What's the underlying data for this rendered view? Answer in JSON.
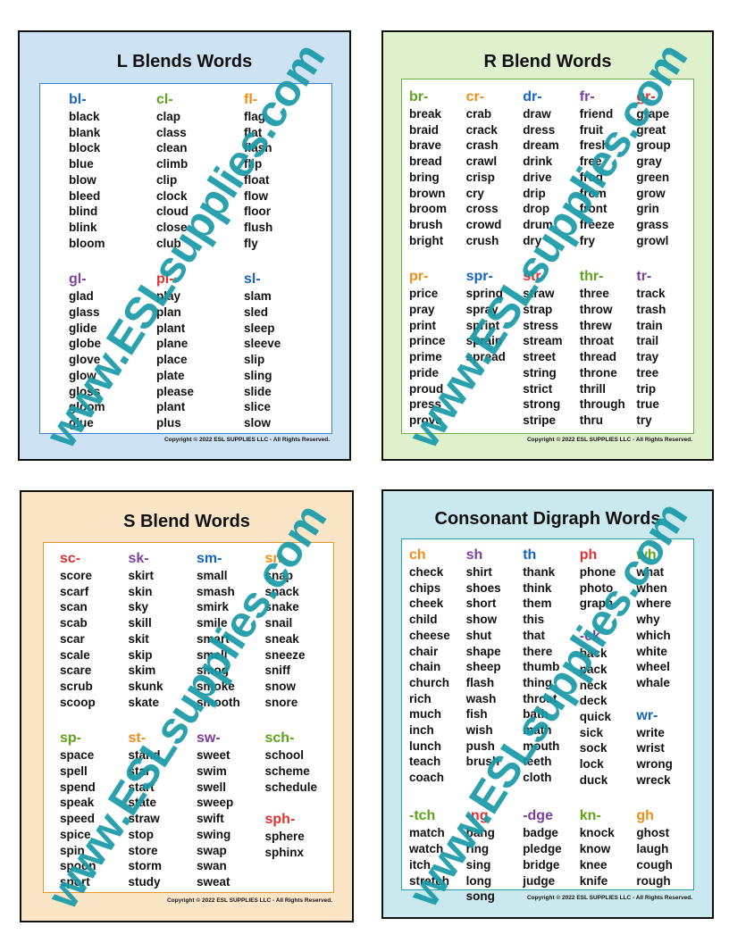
{
  "watermark": "www.ESLsupplies.com",
  "copyright": "Copyright © 2022 ESL SUPPLIES LLC - All Rights Reserved.",
  "colors": {
    "blue": "#1565c0",
    "green": "#5aa51a",
    "orange": "#f28c12",
    "purple": "#7b3fa0",
    "red": "#e03030",
    "teal": "#1a9aa8"
  },
  "cards": [
    {
      "title": "L Blends Words",
      "bg": "#cde2f3",
      "border": "#3a7fd0",
      "rows": [
        [
          [
            {
              "h": "bl-",
              "c": "blue",
              "w": [
                "black",
                "blank",
                "block",
                "blue",
                "blow",
                "bleed",
                "blind",
                "blink",
                "bloom"
              ]
            }
          ],
          [
            {
              "h": "cl-",
              "c": "green",
              "w": [
                "clap",
                "class",
                "clean",
                "climb",
                "clip",
                "clock",
                "cloud",
                "close",
                "club"
              ]
            }
          ],
          [
            {
              "h": "fl-",
              "c": "orange",
              "w": [
                "flag",
                "flat",
                "flash",
                "flip",
                "float",
                "flow",
                "floor",
                "flush",
                "fly"
              ]
            }
          ]
        ],
        [
          [
            {
              "h": "gl-",
              "c": "purple",
              "w": [
                "glad",
                "glass",
                "glide",
                "globe",
                "glove",
                "glow",
                "gloss",
                "gloom",
                "glue"
              ]
            }
          ],
          [
            {
              "h": "pl-",
              "c": "red",
              "w": [
                "play",
                "plan",
                "plant",
                "plane",
                "place",
                "plate",
                "please",
                "plant",
                "plus"
              ]
            }
          ],
          [
            {
              "h": "sl-",
              "c": "blue",
              "w": [
                "slam",
                "sled",
                "sleep",
                "sleeve",
                "slip",
                "sling",
                "slide",
                "slice",
                "slow"
              ]
            }
          ]
        ]
      ]
    },
    {
      "title": "R Blend Words",
      "bg": "#dff0cd",
      "border": "#6ab04a",
      "rows": [
        [
          [
            {
              "h": "br-",
              "c": "green",
              "w": [
                "break",
                "braid",
                "brave",
                "bread",
                "bring",
                "brown",
                "broom",
                "brush",
                "bright"
              ]
            }
          ],
          [
            {
              "h": "cr-",
              "c": "orange",
              "w": [
                "crab",
                "crack",
                "crash",
                "crawl",
                "crisp",
                "cry",
                "cross",
                "crowd",
                "crush"
              ]
            }
          ],
          [
            {
              "h": "dr-",
              "c": "blue",
              "w": [
                "draw",
                "dress",
                "dream",
                "drink",
                "drive",
                "drip",
                "drop",
                "drum",
                "dry"
              ]
            }
          ],
          [
            {
              "h": "fr-",
              "c": "purple",
              "w": [
                "friend",
                "fruit",
                "fresh",
                "free",
                "frog",
                "from",
                "front",
                "freeze",
                "fry"
              ]
            }
          ],
          [
            {
              "h": "gr-",
              "c": "red",
              "w": [
                "grape",
                "great",
                "group",
                "gray",
                "green",
                "grow",
                "grin",
                "grass",
                "growl"
              ]
            }
          ]
        ],
        [
          [
            {
              "h": "pr-",
              "c": "orange",
              "w": [
                "price",
                "pray",
                "print",
                "prince",
                "prime",
                "pride",
                "proud",
                "press",
                "prove"
              ]
            }
          ],
          [
            {
              "h": "spr-",
              "c": "blue",
              "w": [
                "spring",
                "spray",
                "sprint",
                "sprain",
                "spread"
              ]
            }
          ],
          [
            {
              "h": "str-",
              "c": "red",
              "w": [
                "straw",
                "strap",
                "stress",
                "stream",
                "street",
                "string",
                "strict",
                "strong",
                "stripe"
              ]
            }
          ],
          [
            {
              "h": "thr-",
              "c": "green",
              "w": [
                "three",
                "throw",
                "threw",
                "throat",
                "thread",
                "throne",
                "thrill",
                "through",
                "thru"
              ]
            }
          ],
          [
            {
              "h": "tr-",
              "c": "purple",
              "w": [
                "track",
                "trash",
                "train",
                "trail",
                "tray",
                "tree",
                "trip",
                "true",
                "try"
              ]
            }
          ]
        ]
      ]
    },
    {
      "title": "S Blend Words",
      "bg": "#fbe5c7",
      "border": "#e8962a",
      "rows": [
        [
          [
            {
              "h": "sc-",
              "c": "red",
              "w": [
                "score",
                "scarf",
                "scan",
                "scab",
                "scar",
                "scale",
                "scare",
                "scrub",
                "scoop"
              ]
            }
          ],
          [
            {
              "h": "sk-",
              "c": "purple",
              "w": [
                "skirt",
                "skin",
                "sky",
                "skill",
                "skit",
                "skip",
                "skim",
                "skunk",
                "skate"
              ]
            }
          ],
          [
            {
              "h": "sm-",
              "c": "blue",
              "w": [
                "small",
                "smash",
                "smirk",
                "smile",
                "smart",
                "smell",
                "smog",
                "smoke",
                "smooth"
              ]
            }
          ],
          [
            {
              "h": "sn-",
              "c": "orange",
              "w": [
                "snap",
                "snack",
                "snake",
                "snail",
                "sneak",
                "sneeze",
                "sniff",
                "snow",
                "snore"
              ]
            }
          ]
        ],
        [
          [
            {
              "h": "sp-",
              "c": "green",
              "w": [
                "space",
                "spell",
                "spend",
                "speak",
                "speed",
                "spice",
                "spin",
                "spoon",
                "sport"
              ]
            }
          ],
          [
            {
              "h": "st-",
              "c": "orange",
              "w": [
                "stand",
                "star",
                "start",
                "state",
                "straw",
                "stop",
                "store",
                "storm",
                "study"
              ]
            }
          ],
          [
            {
              "h": "sw-",
              "c": "purple",
              "w": [
                "sweet",
                "swim",
                "swell",
                "sweep",
                "swift",
                "swing",
                "swap",
                "swan",
                "sweat"
              ]
            }
          ],
          [
            {
              "h": "sch-",
              "c": "green",
              "w": [
                "school",
                "scheme",
                "schedule"
              ]
            },
            {
              "h": "sph-",
              "c": "red",
              "w": [
                "sphere",
                "sphinx"
              ]
            }
          ]
        ]
      ]
    },
    {
      "title": "Consonant Digraph Words",
      "bg": "#c9e9ee",
      "border": "#2aa0ae",
      "rows": [
        [
          [
            {
              "h": "ch",
              "c": "orange",
              "w": [
                "check",
                "chips",
                "cheek",
                "child",
                "cheese",
                "chair",
                "chain",
                "church",
                "rich",
                "much",
                "inch",
                "lunch",
                "teach",
                "coach"
              ]
            }
          ],
          [
            {
              "h": "sh",
              "c": "purple",
              "w": [
                "shirt",
                "shoes",
                "short",
                "show",
                "shut",
                "shape",
                "sheep",
                "flash",
                "wash",
                "fish",
                "wish",
                "push",
                "brush"
              ]
            }
          ],
          [
            {
              "h": "th",
              "c": "blue",
              "w": [
                "thank",
                "think",
                "them",
                "this",
                "that",
                "there",
                "thumb",
                "thing",
                "throat",
                "bath",
                "math",
                "mouth",
                "teeth",
                "cloth"
              ]
            }
          ],
          [
            {
              "h": "ph",
              "c": "red",
              "w": [
                "phone",
                "photo",
                "graph"
              ]
            },
            {
              "h": "-ck",
              "c": "purple",
              "w": [
                "back",
                "pack",
                "neck",
                "deck",
                "quick",
                "sick",
                "sock",
                "lock",
                "duck"
              ]
            }
          ],
          [
            {
              "h": "wh",
              "c": "green",
              "w": [
                "what",
                "when",
                "where",
                "why",
                "which",
                "white",
                "wheel",
                "whale"
              ]
            },
            {
              "h": "wr-",
              "c": "blue",
              "w": [
                "write",
                "wrist",
                "wrong",
                "wreck"
              ]
            }
          ]
        ],
        [
          [
            {
              "h": "-tch",
              "c": "green",
              "w": [
                "match",
                "watch",
                "itch",
                "stretch"
              ]
            }
          ],
          [
            {
              "h": "-ng",
              "c": "red",
              "w": [
                "bang",
                "ring",
                "sing",
                "long",
                "song"
              ]
            }
          ],
          [
            {
              "h": "-dge",
              "c": "purple",
              "w": [
                "badge",
                "pledge",
                "bridge",
                "judge"
              ]
            }
          ],
          [
            {
              "h": "kn-",
              "c": "green",
              "w": [
                "knock",
                "know",
                "knee",
                "knife"
              ]
            }
          ],
          [
            {
              "h": "gh",
              "c": "orange",
              "w": [
                "ghost",
                "laugh",
                "cough",
                "rough"
              ]
            }
          ]
        ]
      ]
    }
  ]
}
